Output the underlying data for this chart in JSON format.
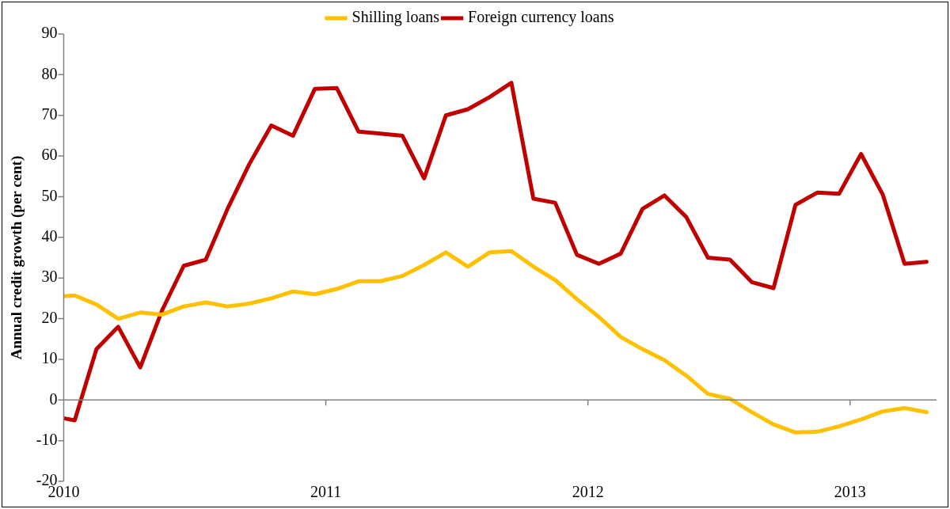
{
  "chart_data": {
    "type": "line",
    "ylabel": "Annual credit growth (per cent)",
    "x": [
      2010.0,
      2010.042,
      2010.125,
      2010.208,
      2010.292,
      2010.375,
      2010.458,
      2010.542,
      2010.625,
      2010.708,
      2010.792,
      2010.875,
      2010.958,
      2011.042,
      2011.125,
      2011.208,
      2011.292,
      2011.375,
      2011.458,
      2011.542,
      2011.625,
      2011.708,
      2011.792,
      2011.875,
      2011.958,
      2012.042,
      2012.125,
      2012.208,
      2012.292,
      2012.375,
      2012.458,
      2012.542,
      2012.625,
      2012.708,
      2012.792,
      2012.875,
      2012.958,
      2013.042,
      2013.125,
      2013.208,
      2013.292
    ],
    "series": [
      {
        "name": "Shilling loans",
        "color": "#ffc000",
        "values": [
          25.5,
          25.7,
          23.5,
          20,
          21.5,
          21,
          23,
          24,
          23,
          23.7,
          25,
          26.7,
          26,
          27.3,
          29.2,
          29.2,
          30.5,
          33.2,
          36.3,
          32.8,
          36.3,
          36.6,
          32.8,
          29.5,
          24.8,
          20.4,
          15.5,
          12.5,
          9.8,
          6,
          1.5,
          0.3,
          -3,
          -6,
          -8,
          -7.8,
          -6.5,
          -4.8,
          -2.8,
          -2,
          -3
        ]
      },
      {
        "name": "Foreign currency loans",
        "color": "#c00000",
        "values": [
          -4.5,
          -5,
          12.5,
          18,
          8,
          22,
          33,
          34.5,
          47,
          58,
          67.5,
          65,
          76.5,
          76.7,
          66,
          65.5,
          65,
          54.5,
          70,
          71.5,
          74.5,
          78,
          49.5,
          48.5,
          35.7,
          33.5,
          36,
          47,
          50.3,
          45,
          35,
          34.5,
          29,
          27.5,
          48,
          51,
          50.7,
          60.5,
          50.5,
          33.5,
          34
        ]
      }
    ],
    "xlim": [
      2010,
      2013.33
    ],
    "xticks": [
      2010,
      2011,
      2012,
      2013
    ],
    "ylim": [
      -20,
      90
    ],
    "yticks": [
      -20,
      -10,
      0,
      10,
      20,
      30,
      40,
      50,
      60,
      70,
      80,
      90
    ],
    "legend": "top",
    "marker": "none",
    "line_style": "solid"
  }
}
